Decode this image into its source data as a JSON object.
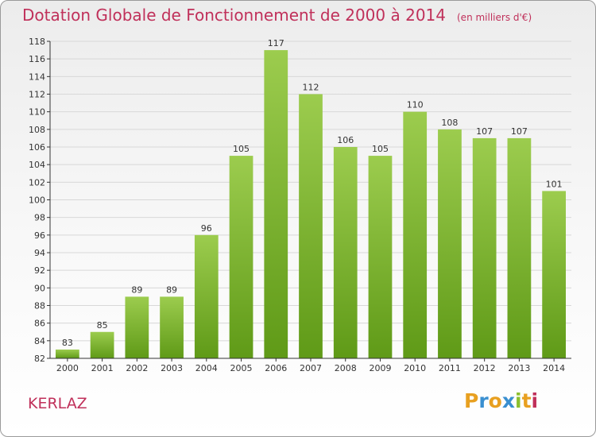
{
  "title": "Dotation Globale de Fonctionnement de 2000 à 2014",
  "subtitle": "(en milliers d'€)",
  "place": "KERLAZ",
  "logo": {
    "letters": [
      "P",
      "r",
      "o",
      "x",
      "i",
      "t",
      "i"
    ],
    "colors": [
      "#e8a020",
      "#3a8fd0",
      "#e8a020",
      "#3a8fd0",
      "#8bbf2e",
      "#e8a020",
      "#c0305a"
    ]
  },
  "colors": {
    "title": "#c0305a",
    "bar_light": "#9ccc4e",
    "bar_dark": "#5f9a17",
    "grid": "#d8d8d8",
    "axis": "#333333"
  },
  "chart_data": {
    "type": "bar",
    "title": "Dotation Globale de Fonctionnement de 2000 à 2014",
    "subtitle": "(en milliers d'€)",
    "xlabel": "",
    "ylabel": "",
    "categories": [
      "2000",
      "2001",
      "2002",
      "2003",
      "2004",
      "2005",
      "2006",
      "2007",
      "2008",
      "2009",
      "2010",
      "2011",
      "2012",
      "2013",
      "2014"
    ],
    "values": [
      83,
      85,
      89,
      89,
      96,
      105,
      117,
      112,
      106,
      105,
      110,
      108,
      107,
      107,
      101
    ],
    "ylim": [
      82,
      118
    ],
    "yticks": [
      82,
      84,
      86,
      88,
      90,
      92,
      94,
      96,
      98,
      100,
      102,
      104,
      106,
      108,
      110,
      112,
      114,
      116,
      118
    ],
    "grid": true,
    "data_labels": true
  }
}
